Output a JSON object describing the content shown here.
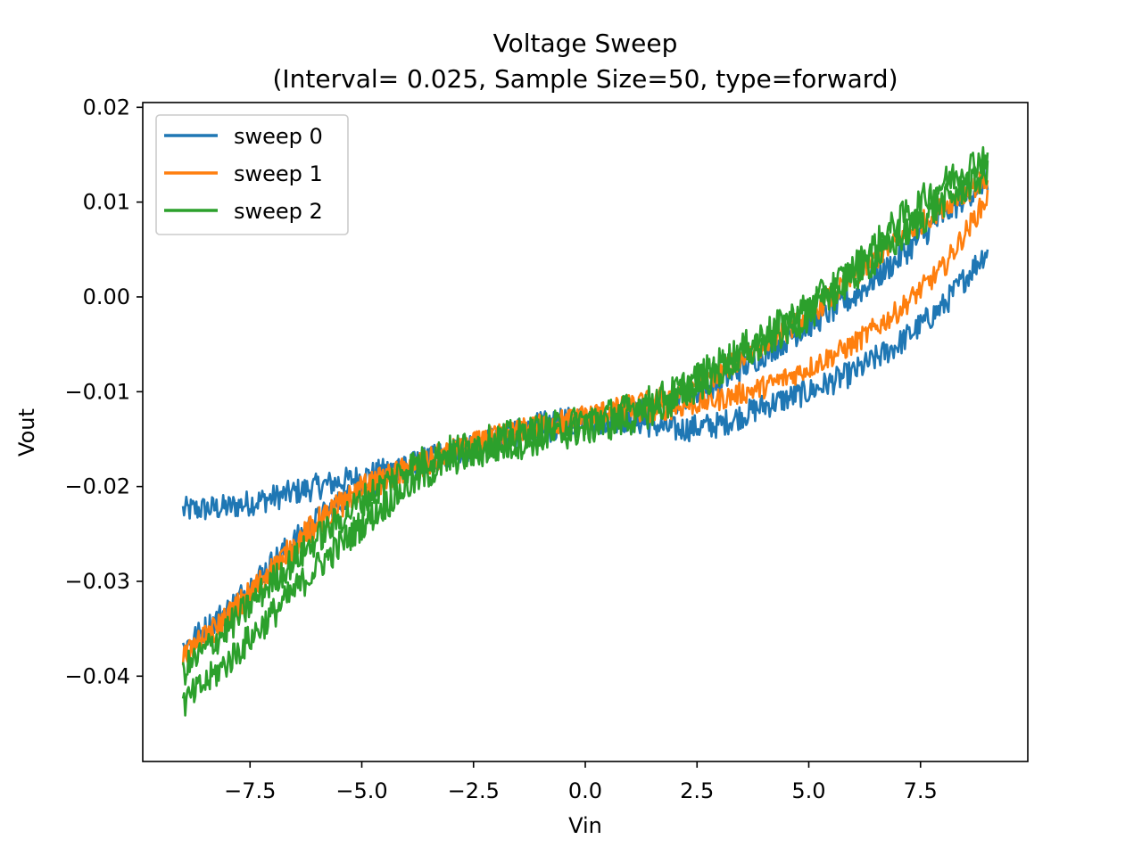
{
  "chart_data": {
    "type": "line",
    "title": "Voltage Sweep",
    "subtitle": "(Interval= 0.025, Sample Size=50, type=forward)",
    "xlabel": "Vin",
    "ylabel": "Vout",
    "xlim": [
      -9.9,
      9.9
    ],
    "ylim": [
      -0.049,
      0.0205
    ],
    "xticks": [
      -7.5,
      -5.0,
      -2.5,
      0.0,
      2.5,
      5.0,
      7.5
    ],
    "xtick_labels": [
      "−7.5",
      "−5.0",
      "−2.5",
      "0.0",
      "2.5",
      "5.0",
      "7.5"
    ],
    "yticks": [
      -0.04,
      -0.03,
      -0.02,
      -0.01,
      0.0,
      0.01,
      0.02
    ],
    "ytick_labels": [
      "−0.04",
      "−0.03",
      "−0.02",
      "−0.01",
      "0.00",
      "0.01",
      "0.02"
    ],
    "grid": false,
    "legend_position": "top-left",
    "series": [
      {
        "name": "sweep 0",
        "color": "#1f77b4",
        "noise": 0.0014,
        "branches": [
          {
            "x": [
              -9.0,
              -8.0,
              -7.0,
              -6.0,
              -5.0,
              -4.0,
              -3.0,
              -2.0,
              -1.0,
              0.0,
              1.0,
              2.0,
              3.0,
              4.0,
              5.0,
              6.0,
              7.0,
              8.0,
              9.0
            ],
            "y": [
              -0.0225,
              -0.0222,
              -0.0212,
              -0.02,
              -0.019,
              -0.0178,
              -0.0165,
              -0.015,
              -0.0135,
              -0.0128,
              -0.013,
              -0.014,
              -0.0135,
              -0.0115,
              -0.01,
              -0.008,
              -0.005,
              -0.001,
              0.005
            ]
          },
          {
            "x": [
              -9.0,
              -8.0,
              -7.0,
              -6.0,
              -5.0,
              -4.0,
              -3.0,
              -2.0,
              -1.0,
              0.0,
              1.0,
              2.0,
              3.0,
              4.0,
              5.0,
              6.0,
              7.0,
              8.0,
              9.0
            ],
            "y": [
              -0.037,
              -0.033,
              -0.028,
              -0.0235,
              -0.02,
              -0.018,
              -0.0165,
              -0.015,
              -0.014,
              -0.0135,
              -0.0125,
              -0.011,
              -0.009,
              -0.006,
              -0.003,
              0.0,
              0.004,
              0.0085,
              0.0125
            ]
          }
        ]
      },
      {
        "name": "sweep 1",
        "color": "#ff7f0e",
        "noise": 0.0012,
        "branches": [
          {
            "x": [
              -9.0,
              -8.0,
              -7.0,
              -6.0,
              -5.0,
              -4.0,
              -3.0,
              -2.0,
              -1.0,
              0.0,
              1.0,
              2.0,
              3.0,
              4.0,
              5.0,
              6.0,
              7.0,
              8.0,
              9.0
            ],
            "y": [
              -0.038,
              -0.034,
              -0.029,
              -0.024,
              -0.0205,
              -0.0185,
              -0.0165,
              -0.0148,
              -0.0135,
              -0.0128,
              -0.0123,
              -0.0117,
              -0.0108,
              -0.0095,
              -0.0075,
              -0.005,
              -0.0015,
              0.003,
              0.0105
            ]
          },
          {
            "x": [
              -9.0,
              -8.0,
              -7.0,
              -6.0,
              -5.0,
              -4.0,
              -3.0,
              -2.0,
              -1.0,
              0.0,
              1.0,
              2.0,
              3.0,
              4.0,
              5.0,
              6.0,
              7.0,
              8.0,
              9.0
            ],
            "y": [
              -0.038,
              -0.0335,
              -0.0285,
              -0.0235,
              -0.02,
              -0.018,
              -0.0162,
              -0.0147,
              -0.0135,
              -0.0125,
              -0.0115,
              -0.0103,
              -0.008,
              -0.005,
              -0.002,
              0.002,
              0.006,
              0.0095,
              0.0125
            ]
          }
        ]
      },
      {
        "name": "sweep 2",
        "color": "#2ca02c",
        "noise": 0.0017,
        "branches": [
          {
            "x": [
              -9.0,
              -8.0,
              -7.0,
              -6.0,
              -5.0,
              -4.0,
              -3.0,
              -2.0,
              -1.0,
              0.0,
              1.0,
              2.0,
              3.0,
              4.0,
              5.0,
              6.0,
              7.0,
              8.0,
              9.0
            ],
            "y": [
              -0.043,
              -0.0385,
              -0.0335,
              -0.0285,
              -0.024,
              -0.02,
              -0.0172,
              -0.016,
              -0.015,
              -0.014,
              -0.013,
              -0.011,
              -0.008,
              -0.005,
              -0.002,
              0.002,
              0.006,
              0.01,
              0.013
            ]
          },
          {
            "x": [
              -9.0,
              -8.0,
              -7.0,
              -6.0,
              -5.0,
              -4.0,
              -3.0,
              -2.0,
              -1.0,
              0.0,
              1.0,
              2.0,
              3.0,
              4.0,
              5.0,
              6.0,
              7.0,
              8.0,
              9.0
            ],
            "y": [
              -0.0395,
              -0.035,
              -0.03,
              -0.0255,
              -0.0215,
              -0.018,
              -0.0162,
              -0.015,
              -0.014,
              -0.013,
              -0.0118,
              -0.01,
              -0.007,
              -0.004,
              -0.001,
              0.003,
              0.008,
              0.012,
              0.015
            ]
          }
        ]
      }
    ]
  }
}
